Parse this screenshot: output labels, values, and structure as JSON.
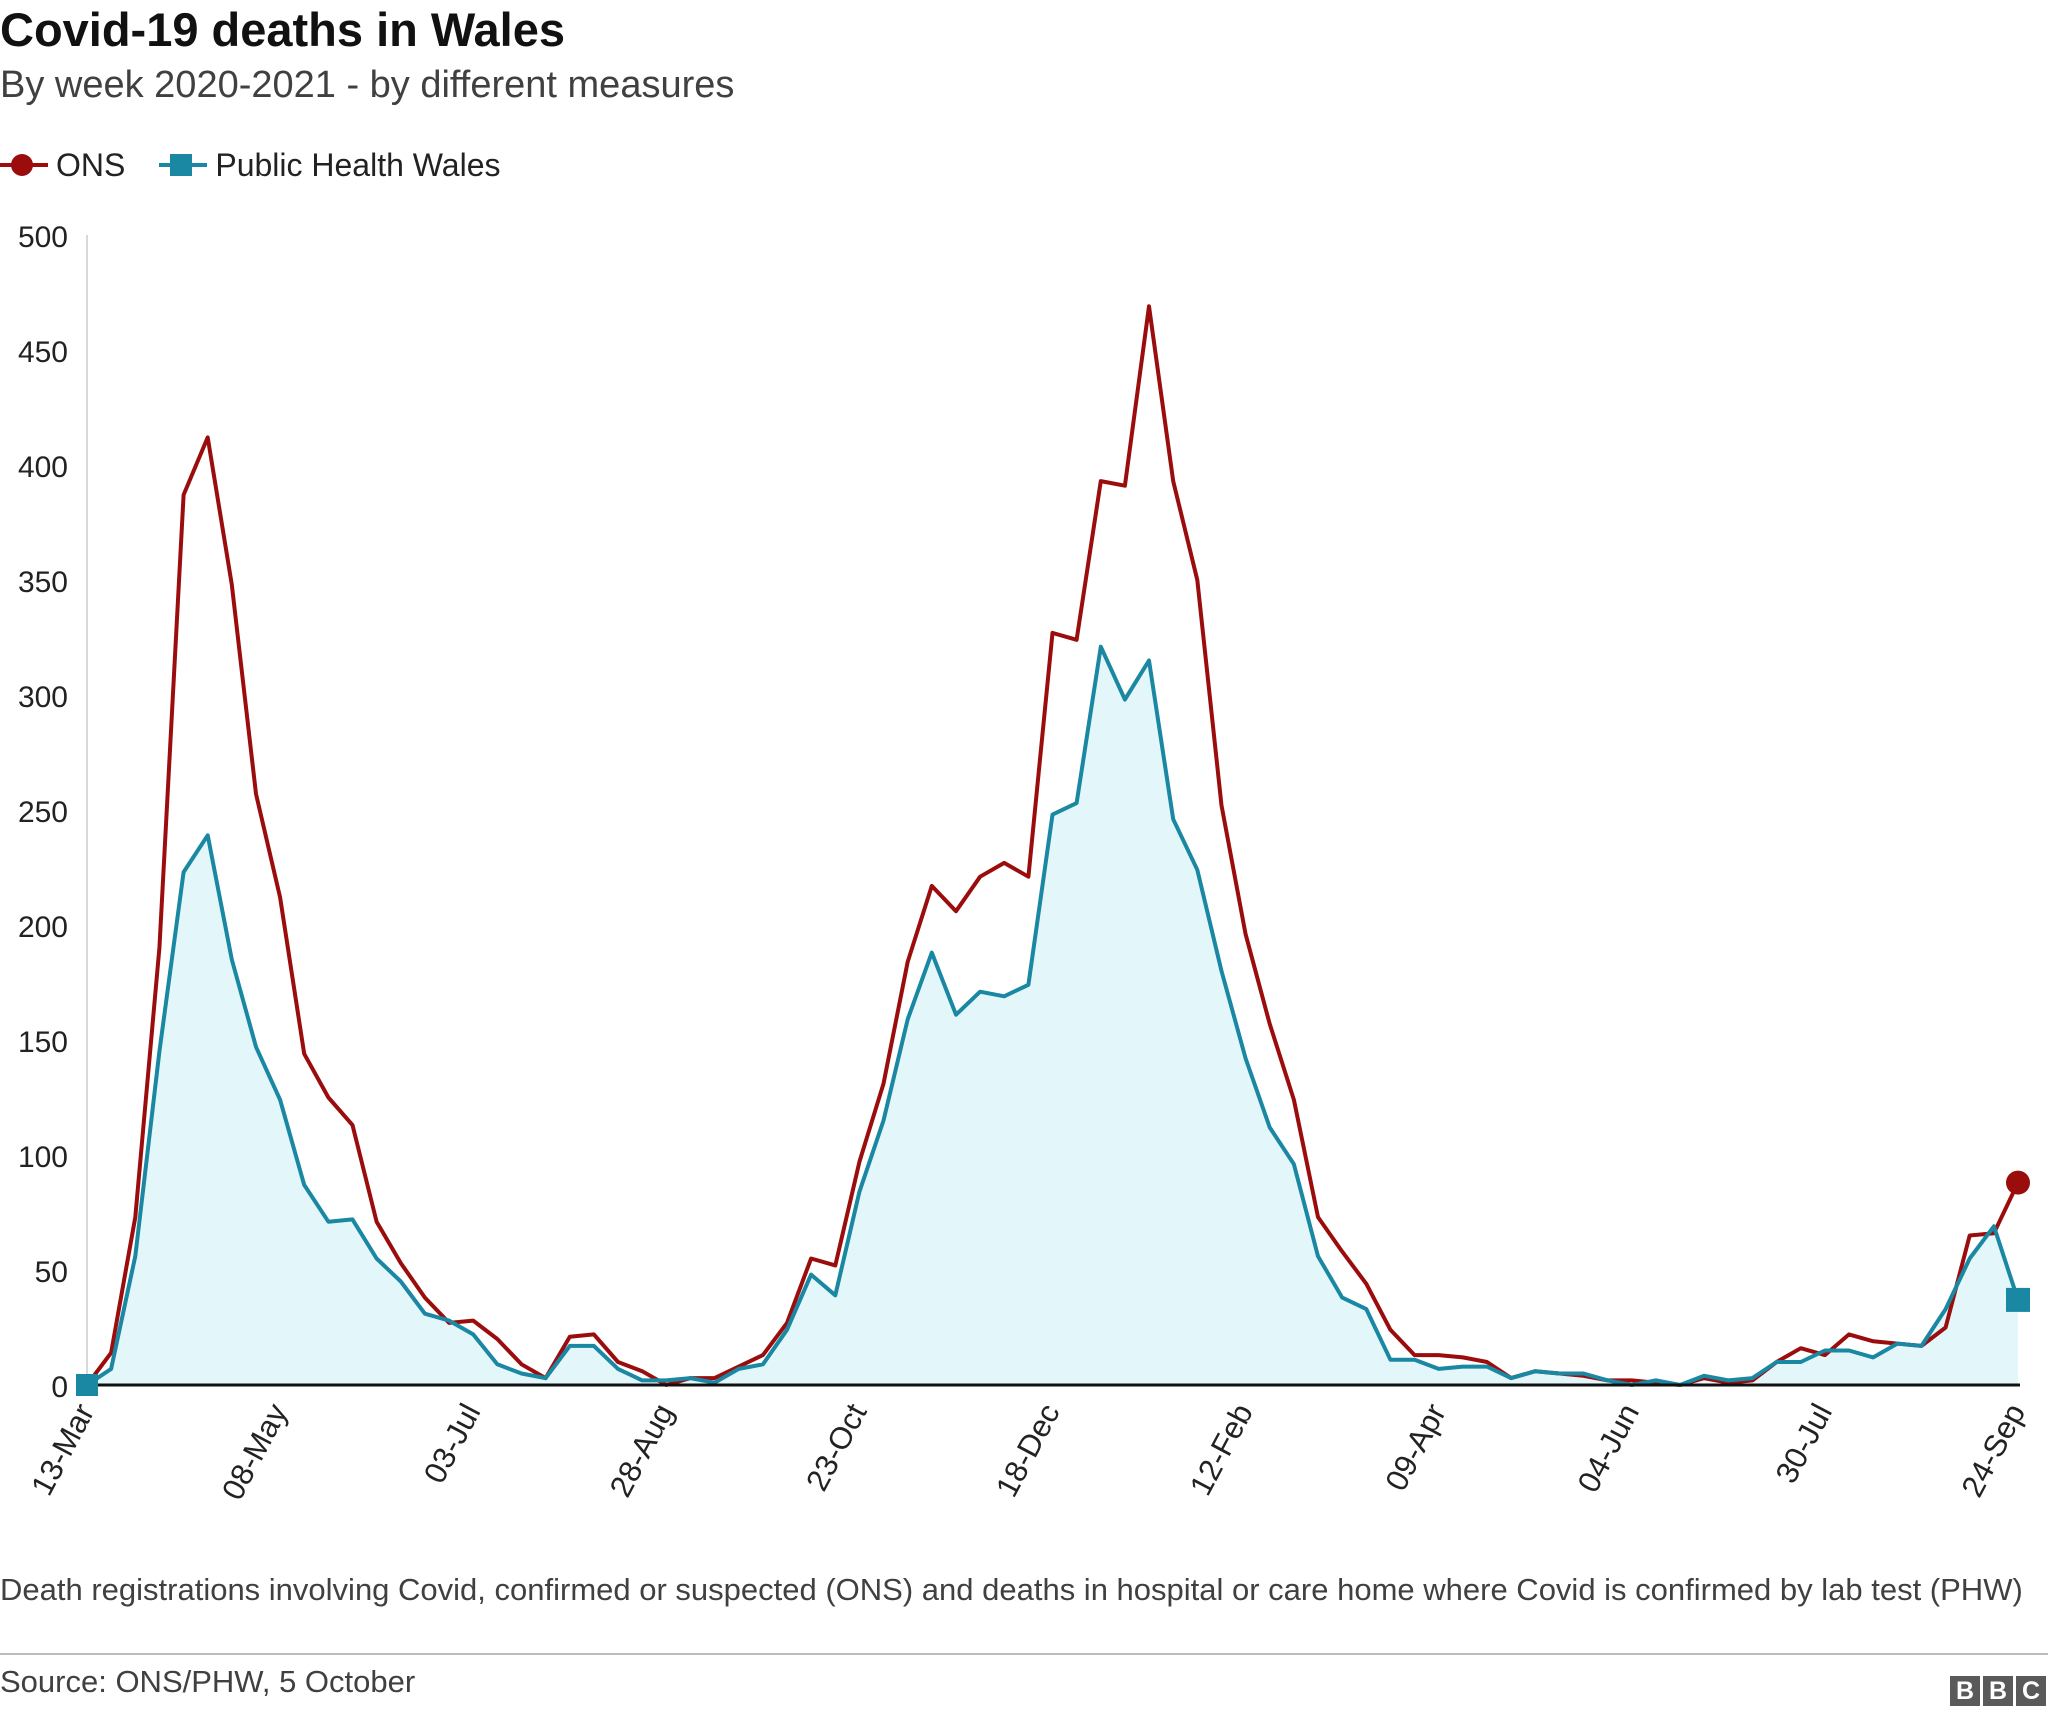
{
  "header": {
    "title": "Covid-19 deaths in Wales",
    "subtitle": "By week 2020-2021 - by different measures"
  },
  "legend": {
    "items": [
      {
        "label": "ONS",
        "color": "#9b0d0d",
        "marker": "circle"
      },
      {
        "label": "Public Health Wales",
        "color": "#1a87a3",
        "marker": "square"
      }
    ]
  },
  "footer": {
    "note": "Death registrations involving Covid, confirmed or suspected (ONS) and deaths in hospital or care home where Covid is confirmed by lab test (PHW)",
    "source": "Source: ONS/PHW, 5 October",
    "logo": [
      "B",
      "B",
      "C"
    ]
  },
  "chart_data": {
    "type": "line",
    "title": "Covid-19 deaths in Wales",
    "subtitle": "By week 2020-2021 - by different measures",
    "xlabel": "",
    "ylabel": "",
    "ylim": [
      0,
      500
    ],
    "yticks": [
      0,
      50,
      100,
      150,
      200,
      250,
      300,
      350,
      400,
      450,
      500
    ],
    "xtick_labels": [
      {
        "label": "13-Mar",
        "index": 0
      },
      {
        "label": "08-May",
        "index": 8
      },
      {
        "label": "03-Jul",
        "index": 16
      },
      {
        "label": "28-Aug",
        "index": 24
      },
      {
        "label": "23-Oct",
        "index": 32
      },
      {
        "label": "18-Dec",
        "index": 40
      },
      {
        "label": "12-Feb",
        "index": 48
      },
      {
        "label": "09-Apr",
        "index": 56
      },
      {
        "label": "04-Jun",
        "index": 64
      },
      {
        "label": "30-Jul",
        "index": 72
      },
      {
        "label": "24-Sep",
        "index": 80
      }
    ],
    "grid": false,
    "legend_position": "top-left",
    "series": [
      {
        "name": "ONS",
        "color": "#9b0d0d",
        "marker": "circle",
        "values": [
          0,
          14,
          73,
          190,
          387,
          412,
          348,
          257,
          212,
          144,
          125,
          113,
          71,
          53,
          38,
          27,
          28,
          20,
          9,
          3,
          21,
          22,
          10,
          6,
          0,
          3,
          3,
          8,
          13,
          27,
          55,
          52,
          97,
          131,
          184,
          217,
          206,
          221,
          227,
          221,
          327,
          324,
          393,
          391,
          469,
          393,
          350,
          252,
          196,
          157,
          124,
          73,
          58,
          44,
          24,
          13,
          13,
          12,
          10,
          3,
          6,
          5,
          4,
          2,
          2,
          1,
          0,
          3,
          1,
          2,
          10,
          16,
          13,
          22,
          19,
          18,
          17,
          25,
          65,
          66,
          88
        ]
      },
      {
        "name": "Public Health Wales",
        "color": "#1a87a3",
        "marker": "square",
        "values": [
          0,
          7,
          56,
          145,
          223,
          239,
          185,
          147,
          124,
          87,
          71,
          72,
          55,
          45,
          31,
          28,
          22,
          9,
          5,
          3,
          17,
          17,
          7,
          2,
          2,
          3,
          1,
          7,
          9,
          24,
          48,
          39,
          84,
          115,
          159,
          188,
          161,
          171,
          169,
          174,
          248,
          253,
          321,
          298,
          315,
          246,
          224,
          180,
          142,
          112,
          96,
          56,
          38,
          33,
          11,
          11,
          7,
          8,
          8,
          3,
          6,
          5,
          5,
          2,
          0,
          2,
          0,
          4,
          2,
          3,
          10,
          10,
          15,
          15,
          12,
          18,
          17,
          33,
          55,
          69,
          37
        ]
      }
    ]
  }
}
